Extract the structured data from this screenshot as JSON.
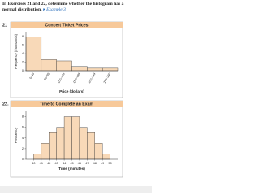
{
  "instructions": "In Exercises 21 and 22, determine whether the histogram has a normal distribution.",
  "example_link": "Example 3",
  "chart_data": [
    {
      "type": "bar",
      "exercise": "21",
      "title": "Concert Ticket Prices",
      "ylabel": "Frequency (thousands)",
      "xlabel": "Price (dollars)",
      "categories": [
        "0–49",
        "50–99",
        "100–149",
        "150–199",
        "200–249",
        "250–299"
      ],
      "values": [
        8,
        2.6,
        2.3,
        1,
        0.6,
        0.6
      ],
      "color": "#f8d9b8",
      "ylim": [
        0,
        9
      ],
      "yticks": [
        0,
        2,
        4,
        6,
        8
      ],
      "grid": false
    },
    {
      "type": "histogram",
      "exercise": "22.",
      "title": "Time to Complete an Exam",
      "ylabel": "Frequency",
      "xlabel": "Time (minutes)",
      "bins": [
        40,
        41,
        42,
        43,
        44,
        45,
        46,
        47,
        48,
        49,
        50
      ],
      "values": [
        1,
        3,
        5,
        6,
        8,
        8,
        6,
        5,
        3,
        1
      ],
      "color": "#f8d9b8",
      "xlim": [
        39,
        51
      ],
      "xticks": [
        40,
        41,
        42,
        43,
        44,
        45,
        46,
        47,
        48,
        49,
        50
      ],
      "ylim": [
        0,
        9
      ],
      "yticks": [
        0,
        2,
        4,
        6,
        8
      ],
      "grid": false
    }
  ]
}
